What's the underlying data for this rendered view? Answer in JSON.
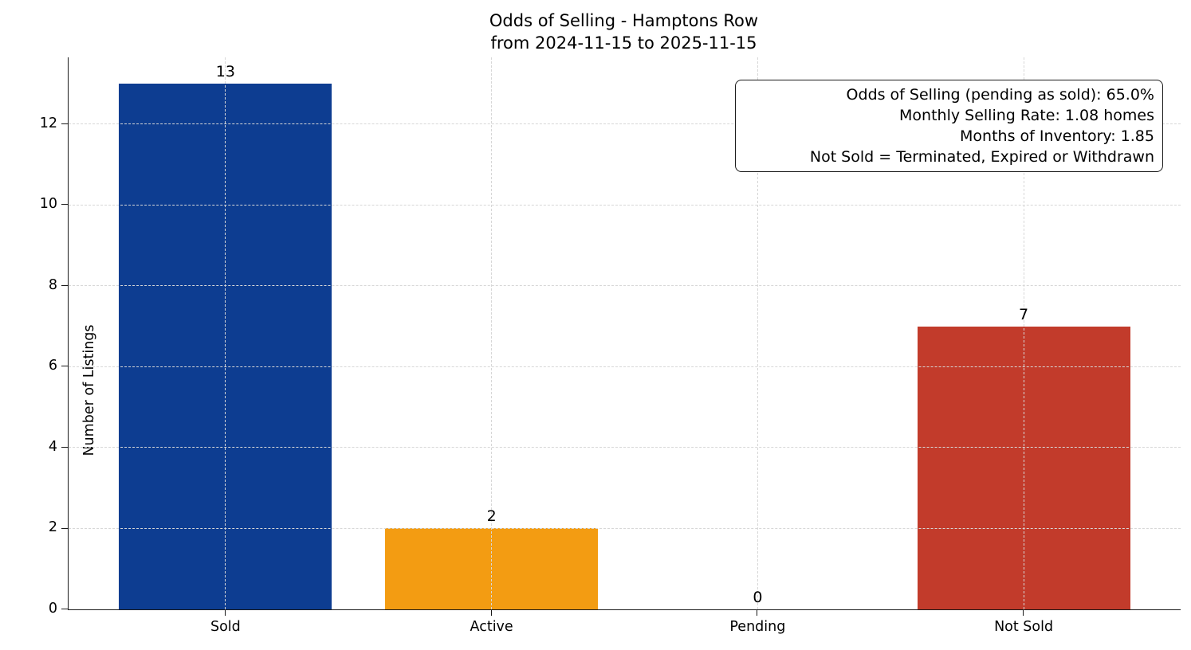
{
  "title": {
    "line1": "Odds of Selling - Hamptons Row",
    "line2": "from 2024-11-15 to 2025-11-15"
  },
  "annotation": {
    "lines": [
      "Odds of Selling (pending as sold): 65.0%",
      "Monthly Selling Rate: 1.08 homes",
      "Months of Inventory: 1.85",
      "Not Sold = Terminated, Expired or Withdrawn"
    ]
  },
  "chart_data": {
    "type": "bar",
    "title": "Odds of Selling - Hamptons Row\nfrom 2024-11-15 to 2025-11-15",
    "categories": [
      "Sold",
      "Active",
      "Pending",
      "Not Sold"
    ],
    "values": [
      13,
      2,
      0,
      7
    ],
    "value_labels": [
      "13",
      "2",
      "0",
      "7"
    ],
    "colors": [
      "#0d3d91",
      "#f39c12",
      null,
      "#c23b2b"
    ],
    "xlabel": "",
    "ylabel": "Number of Listings",
    "yticks": [
      0,
      2,
      4,
      6,
      8,
      10,
      12
    ],
    "ylim": [
      0,
      13.65
    ],
    "grid": "dashed, horizontal and vertical, drawn over bars",
    "legend_position": "none",
    "annotation_box_position": "top-right"
  }
}
